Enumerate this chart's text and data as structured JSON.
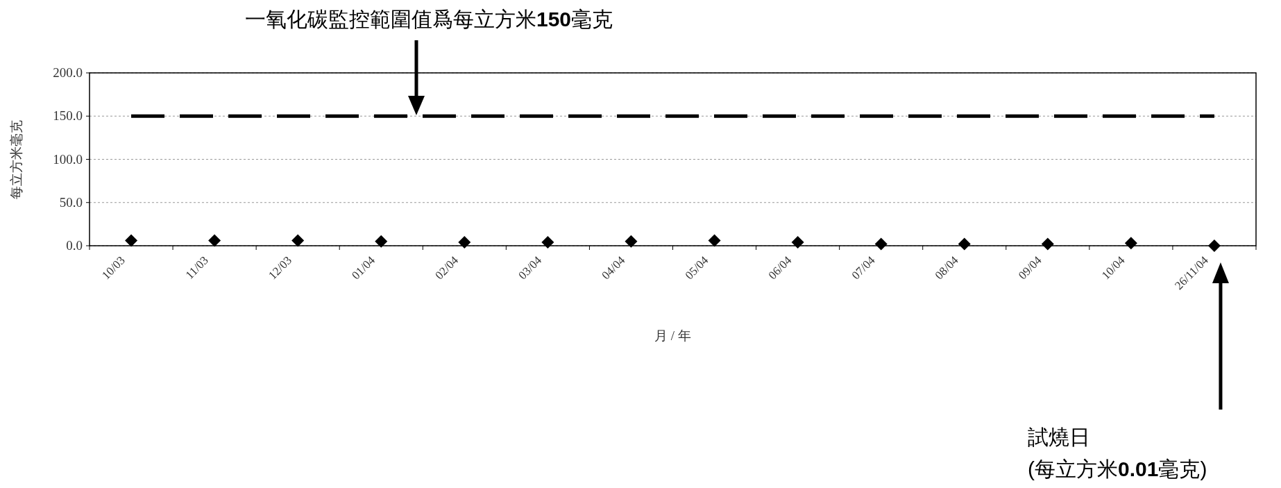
{
  "chart_data": {
    "type": "scatter",
    "categories": [
      "10/03",
      "11/03",
      "12/03",
      "01/04",
      "02/04",
      "03/04",
      "04/04",
      "05/04",
      "06/04",
      "07/04",
      "08/04",
      "09/04",
      "10/04",
      "26/11/04"
    ],
    "series": [
      {
        "color": "#000000",
        "marker": "diamond",
        "values": [
          6,
          6,
          6,
          5,
          4,
          4,
          5,
          6,
          4,
          2,
          2,
          2,
          3,
          0.01
        ]
      },
      {
        "type": "line",
        "color": "#000000",
        "line_style": "dashed",
        "marker": "none",
        "values": [
          150,
          150,
          150,
          150,
          150,
          150,
          150,
          150,
          150,
          150,
          150,
          150,
          150,
          150
        ]
      }
    ],
    "xlabel": "月 / 年",
    "ylabel": "每立方米毫克",
    "ylim": [
      0,
      200
    ],
    "yticks": [
      {
        "value": 0,
        "label": "0.0"
      },
      {
        "value": 50,
        "label": "50.0"
      },
      {
        "value": 100,
        "label": "100.0"
      },
      {
        "value": 150,
        "label": "150.0"
      },
      {
        "value": 200,
        "label": "200.0"
      }
    ],
    "grid": "y",
    "annotations": [
      "一氧化碳監控範圍值爲每立方米150毫克",
      "試燒日\n(每立方米0.01毫克)"
    ]
  }
}
